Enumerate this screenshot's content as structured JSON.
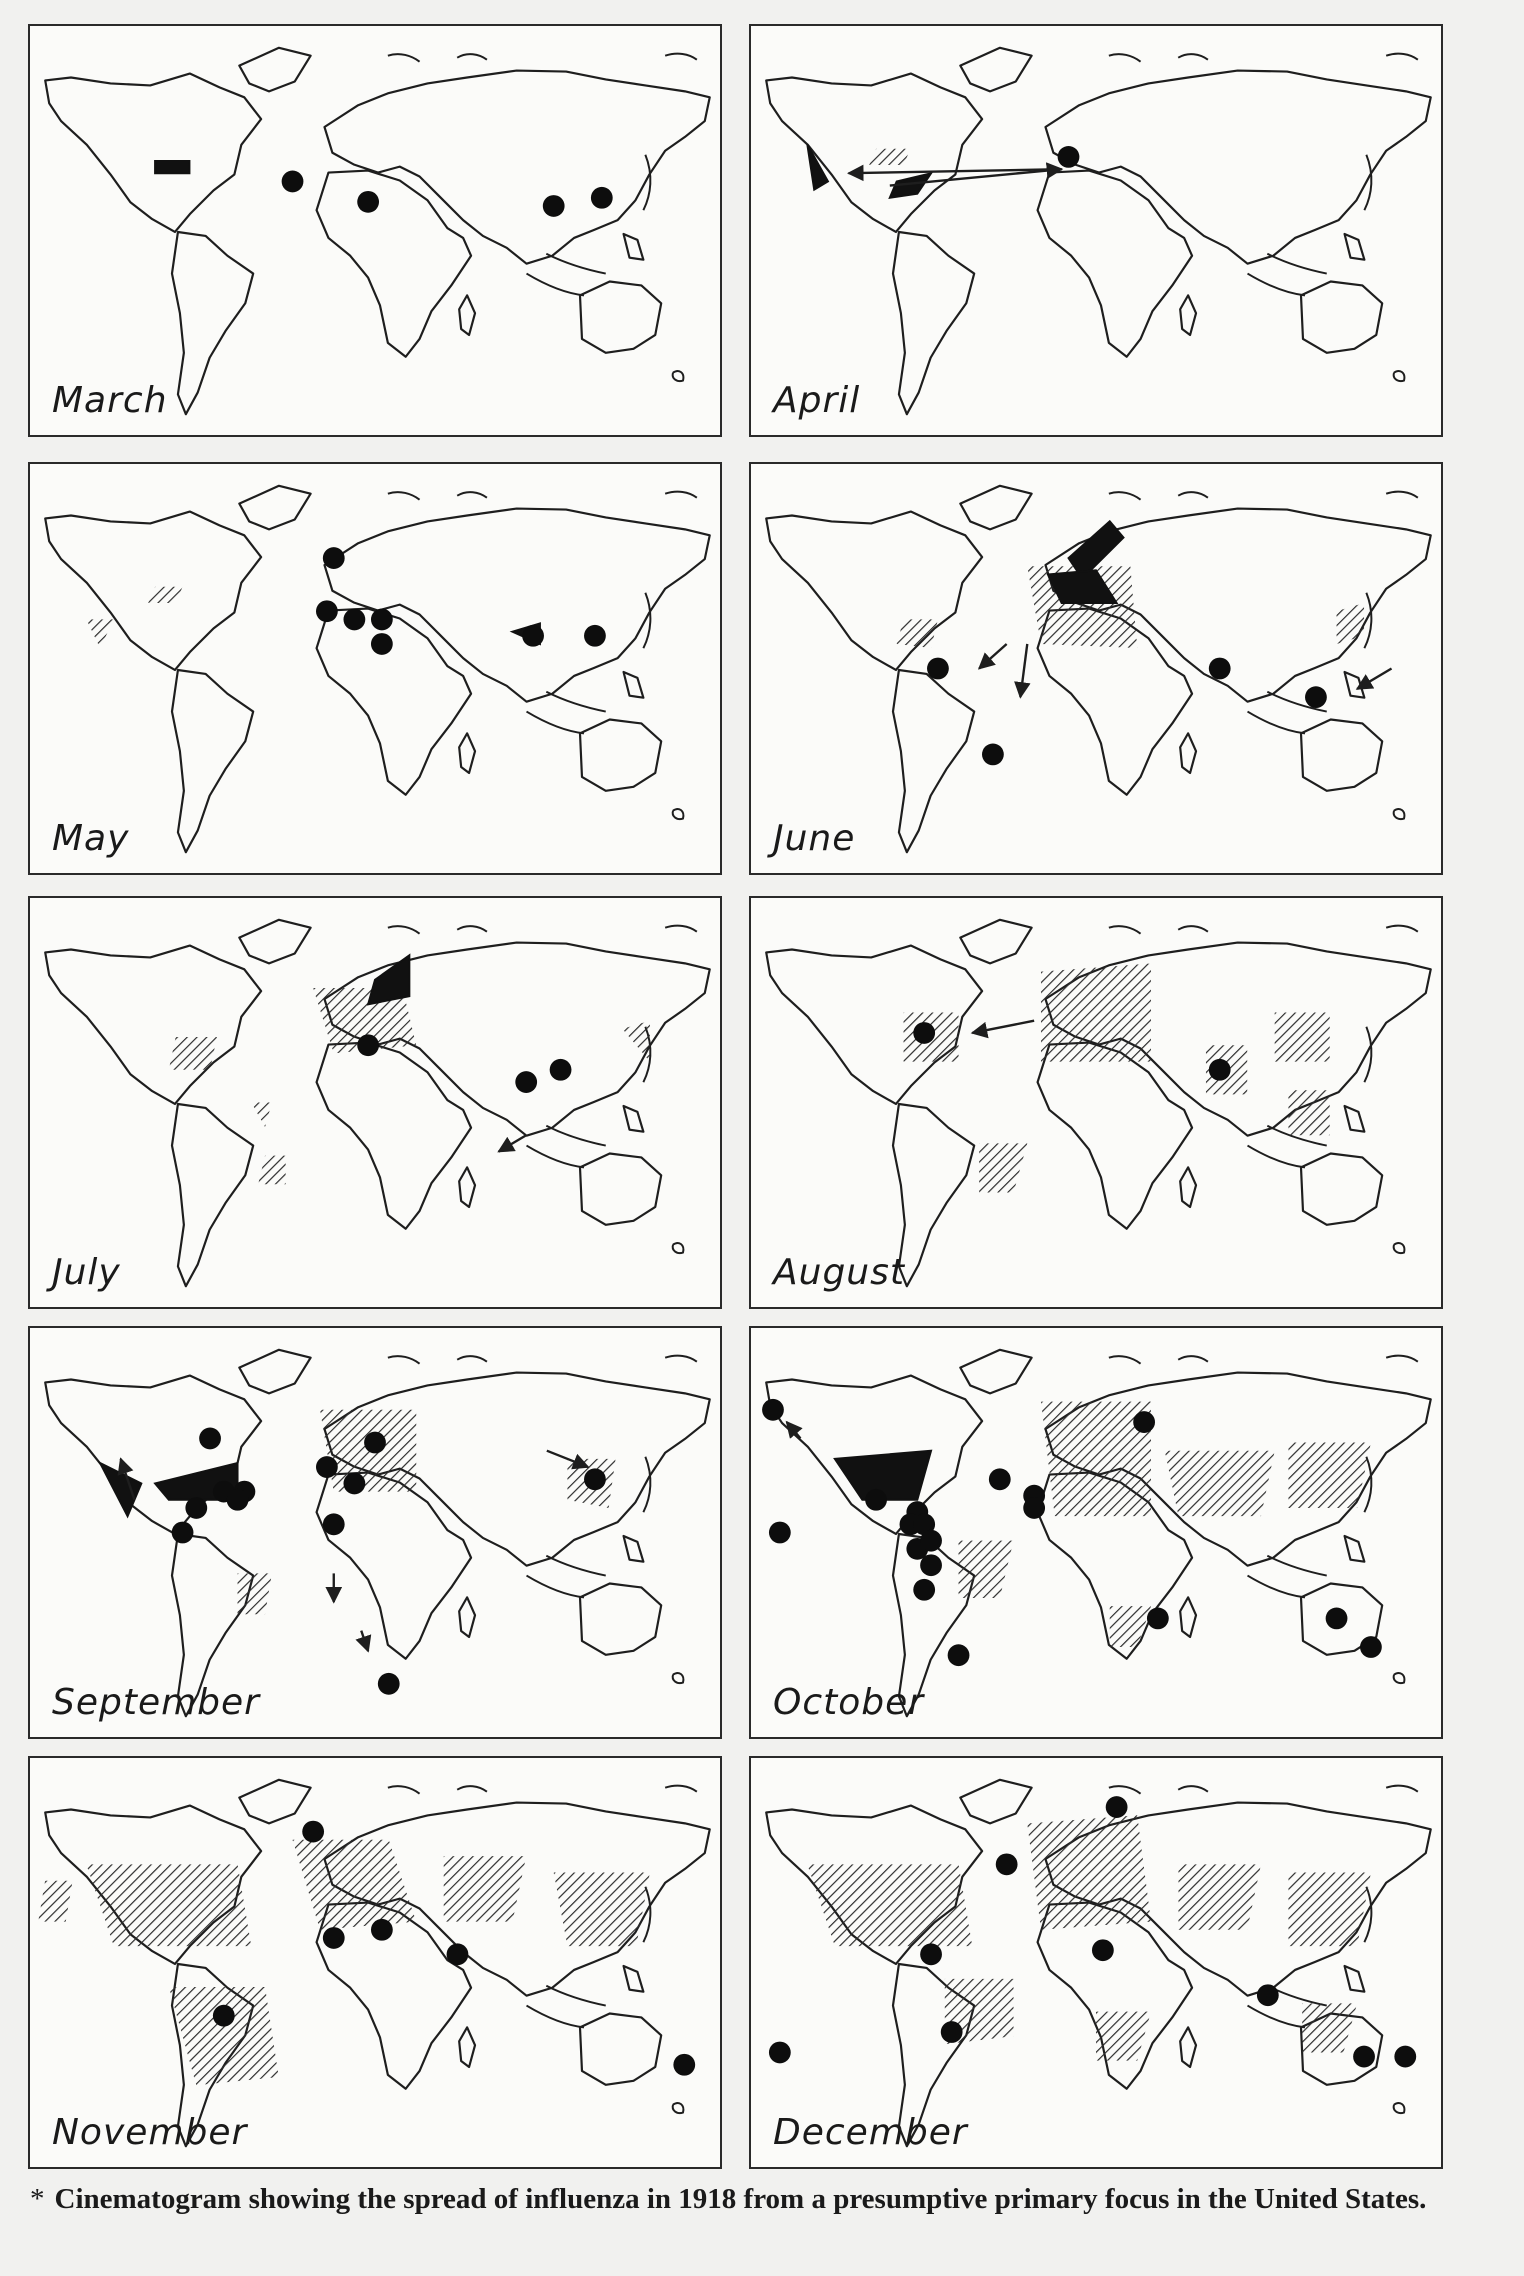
{
  "figure": {
    "caption_marker": "*",
    "caption": "Cinematogram showing the spread of influenza in 1918 from a presumptive primary focus in the United States."
  },
  "panels": [
    {
      "month": "March",
      "dots": [
        [
          38,
          38
        ],
        [
          49,
          43
        ],
        [
          76,
          44
        ],
        [
          83,
          42
        ]
      ],
      "solid": [
        [
          [
            18,
            33
          ],
          [
            23,
            33
          ],
          [
            23,
            36
          ],
          [
            18,
            36
          ]
        ]
      ],
      "hatch": [],
      "arrows": []
    },
    {
      "month": "April",
      "dots": [
        [
          46,
          32
        ]
      ],
      "solid": [
        [
          [
            8,
            29
          ],
          [
            11,
            38
          ],
          [
            9,
            40
          ]
        ],
        [
          [
            21,
            38
          ],
          [
            26,
            36
          ],
          [
            24,
            41
          ],
          [
            20,
            42
          ]
        ]
      ],
      "hatch": [
        [
          [
            18,
            30
          ],
          [
            23,
            30
          ],
          [
            22,
            34
          ],
          [
            17,
            34
          ]
        ]
      ],
      "arrows": [
        [
          [
            20,
            39
          ],
          [
            45,
            35
          ]
        ],
        [
          [
            45,
            35
          ],
          [
            14,
            36
          ]
        ]
      ]
    },
    {
      "month": "May",
      "dots": [
        [
          44,
          23
        ],
        [
          43,
          36
        ],
        [
          47,
          38
        ],
        [
          51,
          38
        ],
        [
          51,
          44
        ],
        [
          73,
          42
        ],
        [
          82,
          42
        ]
      ],
      "solid": [
        [
          [
            70,
            41
          ],
          [
            74,
            39
          ],
          [
            74,
            44
          ]
        ]
      ],
      "hatch": [
        [
          [
            18,
            30
          ],
          [
            22,
            30
          ],
          [
            21,
            34
          ],
          [
            17,
            34
          ]
        ],
        [
          [
            8,
            38
          ],
          [
            12,
            38
          ],
          [
            10,
            45
          ]
        ]
      ],
      "arrows": []
    },
    {
      "month": "June",
      "dots": [
        [
          27,
          50
        ],
        [
          35,
          71
        ],
        [
          68,
          50
        ],
        [
          82,
          57
        ]
      ],
      "solid": [
        [
          [
            46,
            23
          ],
          [
            52,
            14
          ],
          [
            54,
            18
          ],
          [
            48,
            28
          ]
        ],
        [
          [
            43,
            27
          ],
          [
            50,
            26
          ],
          [
            53,
            34
          ],
          [
            45,
            34
          ]
        ]
      ],
      "hatch": [
        [
          [
            40,
            25
          ],
          [
            55,
            25
          ],
          [
            56,
            45
          ],
          [
            42,
            44
          ]
        ],
        [
          [
            22,
            38
          ],
          [
            27,
            38
          ],
          [
            26,
            45
          ],
          [
            21,
            44
          ]
        ],
        [
          [
            85,
            36
          ],
          [
            89,
            34
          ],
          [
            89,
            42
          ],
          [
            85,
            44
          ]
        ]
      ],
      "arrows": [
        [
          [
            37,
            44
          ],
          [
            33,
            50
          ]
        ],
        [
          [
            40,
            44
          ],
          [
            39,
            57
          ]
        ],
        [
          [
            93,
            50
          ],
          [
            88,
            55
          ]
        ]
      ]
    },
    {
      "month": "July",
      "dots": [
        [
          49,
          36
        ],
        [
          72,
          45
        ],
        [
          77,
          42
        ]
      ],
      "solid": [
        [
          [
            50,
            20
          ],
          [
            55,
            14
          ],
          [
            55,
            24
          ],
          [
            49,
            26
          ]
        ]
      ],
      "hatch": [
        [
          [
            41,
            22
          ],
          [
            54,
            22
          ],
          [
            56,
            36
          ],
          [
            44,
            38
          ]
        ],
        [
          [
            21,
            34
          ],
          [
            27,
            34
          ],
          [
            26,
            42
          ],
          [
            20,
            42
          ]
        ],
        [
          [
            32,
            50
          ],
          [
            35,
            50
          ],
          [
            34,
            56
          ]
        ],
        [
          [
            34,
            63
          ],
          [
            37,
            63
          ],
          [
            37,
            70
          ],
          [
            33,
            70
          ]
        ],
        [
          [
            86,
            32
          ],
          [
            90,
            30
          ],
          [
            90,
            40
          ]
        ]
      ],
      "arrows": [
        [
          [
            72,
            58
          ],
          [
            68,
            62
          ]
        ]
      ]
    },
    {
      "month": "August",
      "dots": [
        [
          25,
          33
        ],
        [
          68,
          42
        ]
      ],
      "solid": [],
      "hatch": [
        [
          [
            42,
            18
          ],
          [
            58,
            16
          ],
          [
            58,
            40
          ],
          [
            42,
            40
          ]
        ],
        [
          [
            22,
            28
          ],
          [
            30,
            28
          ],
          [
            30,
            40
          ],
          [
            22,
            40
          ]
        ],
        [
          [
            66,
            36
          ],
          [
            72,
            36
          ],
          [
            72,
            48
          ],
          [
            66,
            48
          ]
        ],
        [
          [
            76,
            28
          ],
          [
            84,
            28
          ],
          [
            84,
            40
          ],
          [
            76,
            40
          ]
        ],
        [
          [
            78,
            47
          ],
          [
            84,
            47
          ],
          [
            84,
            58
          ],
          [
            78,
            58
          ]
        ],
        [
          [
            33,
            60
          ],
          [
            40,
            60
          ],
          [
            38,
            72
          ],
          [
            33,
            72
          ]
        ]
      ],
      "arrows": [
        [
          [
            41,
            30
          ],
          [
            32,
            33
          ]
        ]
      ]
    },
    {
      "month": "September",
      "dots": [
        [
          26,
          27
        ],
        [
          28,
          40
        ],
        [
          31,
          40
        ],
        [
          24,
          44
        ],
        [
          22,
          50
        ],
        [
          30,
          42
        ],
        [
          43,
          34
        ],
        [
          47,
          38
        ],
        [
          50,
          28
        ],
        [
          44,
          48
        ],
        [
          52,
          87
        ],
        [
          82,
          37
        ]
      ],
      "solid": [
        [
          [
            10,
            33
          ],
          [
            16,
            38
          ],
          [
            14,
            46
          ]
        ],
        [
          [
            18,
            38
          ],
          [
            30,
            33
          ],
          [
            30,
            42
          ],
          [
            20,
            42
          ]
        ]
      ],
      "hatch": [
        [
          [
            42,
            20
          ],
          [
            56,
            20
          ],
          [
            56,
            40
          ],
          [
            44,
            40
          ]
        ],
        [
          [
            78,
            32
          ],
          [
            85,
            32
          ],
          [
            84,
            44
          ],
          [
            78,
            42
          ]
        ],
        [
          [
            30,
            60
          ],
          [
            35,
            60
          ],
          [
            34,
            70
          ],
          [
            30,
            70
          ]
        ]
      ],
      "arrows": [
        [
          [
            15,
            42
          ],
          [
            13,
            32
          ]
        ],
        [
          [
            75,
            30
          ],
          [
            81,
            34
          ]
        ],
        [
          [
            44,
            60
          ],
          [
            44,
            67
          ]
        ],
        [
          [
            48,
            74
          ],
          [
            49,
            79
          ]
        ]
      ]
    },
    {
      "month": "October",
      "dots": [
        [
          3,
          20
        ],
        [
          4,
          50
        ],
        [
          18,
          42
        ],
        [
          24,
          45
        ],
        [
          23,
          48
        ],
        [
          25,
          48
        ],
        [
          24,
          54
        ],
        [
          26,
          52
        ],
        [
          26,
          58
        ],
        [
          25,
          64
        ],
        [
          30,
          80
        ],
        [
          36,
          37
        ],
        [
          41,
          41
        ],
        [
          41,
          44
        ],
        [
          57,
          23
        ],
        [
          59,
          71
        ],
        [
          85,
          71
        ],
        [
          90,
          78
        ]
      ],
      "solid": [
        [
          [
            12,
            32
          ],
          [
            26,
            30
          ],
          [
            24,
            42
          ],
          [
            16,
            42
          ]
        ]
      ],
      "hatch": [
        [
          [
            42,
            18
          ],
          [
            58,
            18
          ],
          [
            58,
            46
          ],
          [
            44,
            46
          ]
        ],
        [
          [
            60,
            30
          ],
          [
            76,
            30
          ],
          [
            74,
            46
          ],
          [
            62,
            46
          ]
        ],
        [
          [
            78,
            28
          ],
          [
            90,
            28
          ],
          [
            88,
            44
          ],
          [
            78,
            44
          ]
        ],
        [
          [
            30,
            52
          ],
          [
            38,
            52
          ],
          [
            36,
            66
          ],
          [
            30,
            66
          ]
        ],
        [
          [
            52,
            68
          ],
          [
            58,
            68
          ],
          [
            56,
            78
          ],
          [
            52,
            78
          ]
        ]
      ],
      "arrows": [
        [
          [
            7,
            27
          ],
          [
            5,
            23
          ]
        ]
      ]
    },
    {
      "month": "November",
      "dots": [
        [
          41,
          18
        ],
        [
          44,
          44
        ],
        [
          51,
          42
        ],
        [
          62,
          48
        ],
        [
          28,
          63
        ],
        [
          95,
          75
        ]
      ],
      "solid": [],
      "hatch": [
        [
          [
            8,
            26
          ],
          [
            30,
            26
          ],
          [
            32,
            46
          ],
          [
            12,
            46
          ]
        ],
        [
          [
            38,
            20
          ],
          [
            52,
            20
          ],
          [
            56,
            40
          ],
          [
            42,
            42
          ]
        ],
        [
          [
            60,
            24
          ],
          [
            72,
            24
          ],
          [
            70,
            40
          ],
          [
            60,
            40
          ]
        ],
        [
          [
            76,
            28
          ],
          [
            90,
            28
          ],
          [
            88,
            46
          ],
          [
            78,
            46
          ]
        ],
        [
          [
            20,
            56
          ],
          [
            34,
            56
          ],
          [
            36,
            78
          ],
          [
            24,
            80
          ]
        ],
        [
          [
            2,
            30
          ],
          [
            6,
            30
          ],
          [
            5,
            40
          ],
          [
            1,
            40
          ]
        ]
      ],
      "arrows": []
    },
    {
      "month": "December",
      "dots": [
        [
          26,
          48
        ],
        [
          37,
          26
        ],
        [
          51,
          47
        ],
        [
          53,
          12
        ],
        [
          75,
          58
        ],
        [
          29,
          67
        ],
        [
          4,
          72
        ],
        [
          89,
          73
        ],
        [
          95,
          73
        ]
      ],
      "solid": [],
      "hatch": [
        [
          [
            8,
            26
          ],
          [
            30,
            26
          ],
          [
            32,
            46
          ],
          [
            12,
            46
          ]
        ],
        [
          [
            40,
            16
          ],
          [
            56,
            14
          ],
          [
            58,
            40
          ],
          [
            42,
            42
          ]
        ],
        [
          [
            62,
            26
          ],
          [
            74,
            26
          ],
          [
            72,
            42
          ],
          [
            62,
            42
          ]
        ],
        [
          [
            78,
            28
          ],
          [
            90,
            28
          ],
          [
            88,
            46
          ],
          [
            78,
            46
          ]
        ],
        [
          [
            28,
            54
          ],
          [
            38,
            54
          ],
          [
            38,
            68
          ],
          [
            28,
            70
          ]
        ],
        [
          [
            50,
            62
          ],
          [
            58,
            62
          ],
          [
            56,
            74
          ],
          [
            50,
            74
          ]
        ],
        [
          [
            80,
            60
          ],
          [
            88,
            60
          ],
          [
            86,
            72
          ],
          [
            80,
            72
          ]
        ]
      ],
      "arrows": []
    }
  ]
}
